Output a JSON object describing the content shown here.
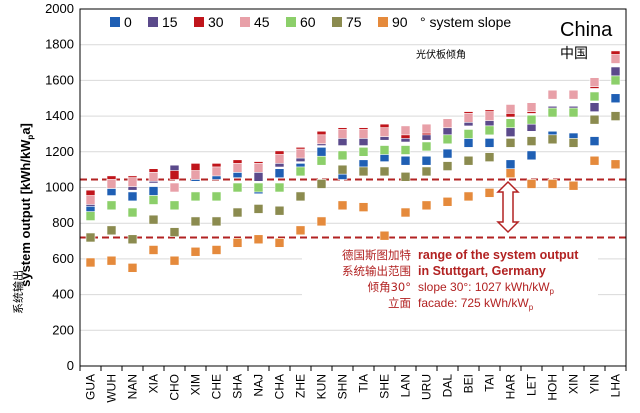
{
  "chart_data": {
    "type": "scatter",
    "ylabel": "system output [kWh/kW",
    "ylabel_sub": "p",
    "ylabel_end": "a]",
    "ylabel_cn": "系统输出",
    "ylim": [
      0,
      2000
    ],
    "yticks": [
      "0",
      "200",
      "400",
      "600",
      "800",
      "1000",
      "1200",
      "1400",
      "1600",
      "1800",
      "2000"
    ],
    "grid": true,
    "country": "China",
    "country_cn": "中国",
    "legend_note_cn": "光伏板倾角",
    "legend_suffix": "° system slope",
    "categories": [
      "GUA",
      "WUH",
      "NAN",
      "XIA",
      "CHO",
      "XIM",
      "CHE",
      "SHA",
      "NAJ",
      "CHA",
      "ZHE",
      "KUN",
      "SHN",
      "TIA",
      "SHE",
      "LAN",
      "URU",
      "DAL",
      "BEI",
      "TAI",
      "HAR",
      "LET",
      "HOH",
      "XIN",
      "YIN",
      "LHA"
    ],
    "series": [
      {
        "name": "0",
        "color": "#1f5fb4",
        "values": [
          870,
          980,
          950,
          980,
          1080,
          1060,
          1070,
          1080,
          990,
          1080,
          1110,
          1200,
          1070,
          1130,
          1170,
          1150,
          1150,
          1190,
          1250,
          1250,
          1130,
          1180,
          1290,
          1280,
          1260,
          1500
        ]
      },
      {
        "name": "15",
        "color": "#5b4a8b",
        "values": [
          920,
          1020,
          1010,
          1050,
          1100,
          1090,
          1100,
          1110,
          1060,
          1140,
          1170,
          1260,
          1260,
          1260,
          1290,
          1280,
          1290,
          1320,
          1370,
          1370,
          1310,
          1340,
          1430,
          1430,
          1450,
          1650
        ]
      },
      {
        "name": "30",
        "color": "#c0151b",
        "values": [
          960,
          1040,
          1040,
          1080,
          1070,
          1110,
          1110,
          1130,
          1120,
          1180,
          1200,
          1290,
          1310,
          1310,
          1330,
          1300,
          1320,
          1360,
          1400,
          1410,
          1420,
          1440,
          1520,
          1520,
          1580,
          1740
        ]
      },
      {
        "name": "45",
        "color": "#e8a0a8",
        "values": [
          930,
          1020,
          1030,
          1060,
          1000,
          1070,
          1090,
          1110,
          1110,
          1160,
          1190,
          1270,
          1300,
          1300,
          1310,
          1320,
          1330,
          1360,
          1390,
          1400,
          1440,
          1450,
          1520,
          1520,
          1590,
          1720
        ]
      },
      {
        "name": "60",
        "color": "#8ccf6a",
        "values": [
          840,
          900,
          860,
          930,
          900,
          950,
          950,
          1000,
          1000,
          1000,
          1090,
          1150,
          1180,
          1200,
          1210,
          1210,
          1230,
          1270,
          1300,
          1320,
          1360,
          1380,
          1420,
          1420,
          1510,
          1600
        ]
      },
      {
        "name": "75",
        "color": "#8b8b4f",
        "values": [
          720,
          760,
          710,
          820,
          750,
          810,
          810,
          860,
          880,
          870,
          950,
          1020,
          1100,
          1090,
          1090,
          1060,
          1090,
          1120,
          1150,
          1170,
          1250,
          1260,
          1270,
          1250,
          1380,
          1400
        ]
      },
      {
        "name": "90",
        "color": "#e58a3c",
        "values": [
          580,
          590,
          550,
          650,
          590,
          640,
          650,
          690,
          710,
          690,
          760,
          810,
          900,
          890,
          730,
          860,
          900,
          920,
          950,
          970,
          1080,
          1020,
          1020,
          1010,
          1150,
          1130
        ]
      }
    ],
    "reference_lines": [
      1045,
      720
    ],
    "annotation": {
      "cn_line1": "德国斯图加特",
      "cn_line2": "系统输出范围",
      "cn_line3": "倾角30°",
      "cn_line4": "立面",
      "en_line1": "range of the system output",
      "en_line2": "in Stuttgart, Germany",
      "en_line3": "slope 30°: 1027 kWh/kW",
      "en_line3_sub": "p",
      "en_line4": "facade: 725 kWh/kW",
      "en_line4_sub": "p"
    }
  }
}
